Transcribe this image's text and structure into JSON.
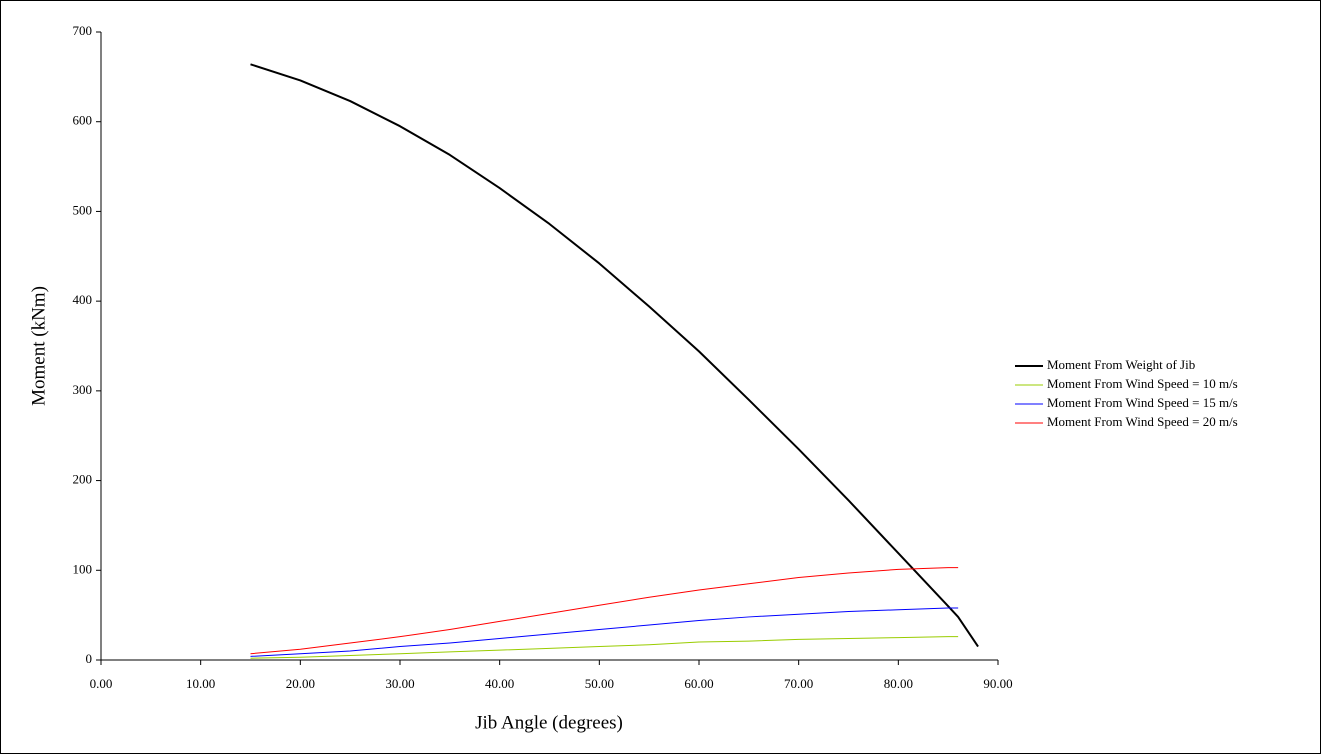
{
  "chart_data": {
    "type": "line",
    "xlabel": "Jib Angle (degrees)",
    "ylabel": "Moment (kNm)",
    "x": [
      15,
      20,
      25,
      30,
      35,
      40,
      45,
      50,
      55,
      60,
      65,
      70,
      75,
      80,
      85,
      86,
      88
    ],
    "series": [
      {
        "name": "Moment From Weight of Jib",
        "color": "#000000",
        "width": 2,
        "values": [
          664,
          646,
          623,
          595,
          563,
          526,
          486,
          442,
          394,
          344,
          290,
          235,
          178,
          119,
          60,
          48,
          15
        ]
      },
      {
        "name": "Moment From Wind Speed = 10 m/s",
        "color": "#99cc00",
        "width": 1,
        "values": [
          2,
          3,
          5,
          7,
          9,
          11,
          13,
          15,
          17,
          20,
          21,
          23,
          24,
          25,
          26,
          26,
          null
        ]
      },
      {
        "name": "Moment From Wind Speed = 15 m/s",
        "color": "#0000ff",
        "width": 1,
        "values": [
          4,
          7,
          10,
          15,
          19,
          24,
          29,
          34,
          39,
          44,
          48,
          51,
          54,
          56,
          58,
          58,
          null
        ]
      },
      {
        "name": "Moment From Wind Speed = 20 m/s",
        "color": "#ff0000",
        "width": 1,
        "values": [
          7,
          12,
          19,
          26,
          34,
          43,
          52,
          61,
          70,
          78,
          85,
          92,
          97,
          101,
          103,
          103,
          null
        ]
      }
    ],
    "xlim": [
      0,
      90
    ],
    "xticks": [
      {
        "value": 0,
        "label": "0.00"
      },
      {
        "value": 10,
        "label": "10.00"
      },
      {
        "value": 20,
        "label": "20.00"
      },
      {
        "value": 30,
        "label": "30.00"
      },
      {
        "value": 40,
        "label": "40.00"
      },
      {
        "value": 50,
        "label": "50.00"
      },
      {
        "value": 60,
        "label": "60.00"
      },
      {
        "value": 70,
        "label": "70.00"
      },
      {
        "value": 80,
        "label": "80.00"
      },
      {
        "value": 90,
        "label": "90.00"
      }
    ],
    "ylim": [
      0,
      700
    ],
    "yticks": [
      0,
      100,
      200,
      300,
      400,
      500,
      600,
      700
    ],
    "legend": "right"
  }
}
